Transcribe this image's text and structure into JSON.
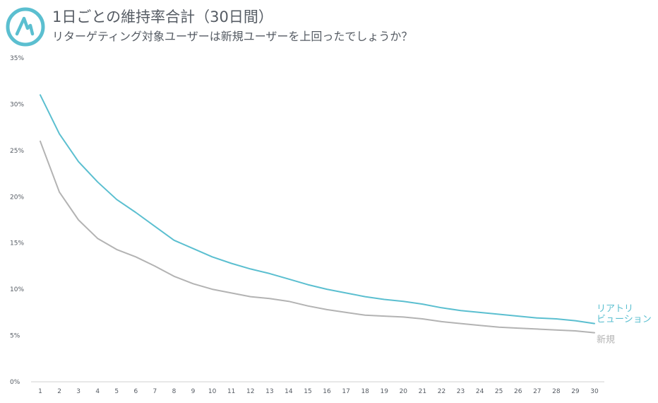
{
  "header": {
    "title": "1日ごとの維持率合計（30日間）",
    "subtitle": "リターゲティング対象ユーザーは新規ユーザーを上回ったでしょうか？",
    "logo_icon": "brand-logo-icon"
  },
  "colors": {
    "retarget": "#5bbfd0",
    "new": "#b3b3b3",
    "axis": "#555b63",
    "logo": "#5bbfd0"
  },
  "chart_data": {
    "type": "line",
    "title": "1日ごとの維持率合計（30日間）",
    "subtitle": "リターゲティング対象ユーザーは新規ユーザーを上回ったでしょうか？",
    "x": [
      1,
      2,
      3,
      4,
      5,
      6,
      7,
      8,
      9,
      10,
      11,
      12,
      13,
      14,
      15,
      16,
      17,
      18,
      19,
      20,
      21,
      22,
      23,
      24,
      25,
      26,
      27,
      28,
      29,
      30
    ],
    "ylim": [
      0,
      35
    ],
    "y_ticks": [
      0,
      5,
      10,
      15,
      20,
      25,
      30,
      35
    ],
    "y_tick_labels": [
      "0%",
      "5%",
      "10%",
      "15%",
      "20%",
      "25%",
      "30%",
      "35%"
    ],
    "grid": false,
    "legend": "end-of-line labels",
    "series": [
      {
        "name": "リアトリビューション",
        "name_lines": [
          "リアトリ",
          "ビューション"
        ],
        "color": "#5bbfd0",
        "values": [
          31.0,
          26.8,
          23.8,
          21.6,
          19.7,
          18.3,
          16.8,
          15.3,
          14.4,
          13.5,
          12.8,
          12.2,
          11.7,
          11.1,
          10.5,
          10.0,
          9.6,
          9.2,
          8.9,
          8.7,
          8.4,
          8.0,
          7.7,
          7.5,
          7.3,
          7.1,
          6.9,
          6.8,
          6.6,
          6.3
        ]
      },
      {
        "name": "新規",
        "name_lines": [
          "新規"
        ],
        "color": "#b3b3b3",
        "values": [
          26.0,
          20.5,
          17.5,
          15.5,
          14.3,
          13.5,
          12.5,
          11.4,
          10.6,
          10.0,
          9.6,
          9.2,
          9.0,
          8.7,
          8.2,
          7.8,
          7.5,
          7.2,
          7.1,
          7.0,
          6.8,
          6.5,
          6.3,
          6.1,
          5.9,
          5.8,
          5.7,
          5.6,
          5.5,
          5.3
        ]
      }
    ]
  }
}
